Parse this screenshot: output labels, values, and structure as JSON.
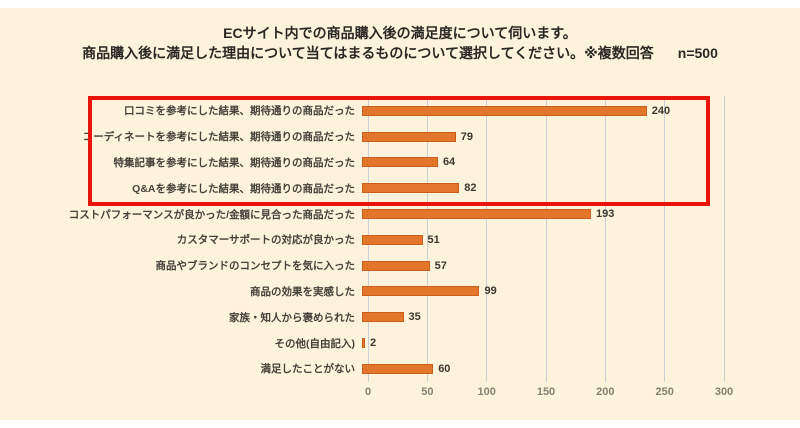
{
  "page": {
    "background_color": "#fdf3dd",
    "top_strip_color": "#ffffff"
  },
  "header": {
    "title_line1": "ECサイト内での商品購入後の満足度について伺います。",
    "title_line2": "商品購入後に満足した理由について当てはまるものについて選択してください。※複数回答",
    "sample_size": "n=500"
  },
  "chart_data": {
    "type": "bar",
    "orientation": "horizontal",
    "title": "商品購入後に満足した理由",
    "categories": [
      "口コミを参考にした結果、期待通りの商品だった",
      "コーディネートを参考にした結果、期待通りの商品だった",
      "特集記事を参考にした結果、期待通りの商品だった",
      "Q&Aを参考にした結果、期待通りの商品だった",
      "コストパフォーマンスが良かった/金額に見合った商品だった",
      "カスタマーサポートの対応が良かった",
      "商品やブランドのコンセプトを気に入った",
      "商品の効果を実感した",
      "家族・知人から褒められた",
      "その他(自由記入)",
      "満足したことがない"
    ],
    "values": [
      240,
      79,
      64,
      82,
      193,
      51,
      57,
      99,
      35,
      2,
      60
    ],
    "x_ticks": [
      0,
      50,
      100,
      150,
      200,
      250,
      300
    ],
    "xlim": [
      0,
      300
    ],
    "grid": true,
    "legend": false,
    "bar_color": "#e4762c",
    "bar_border_color": "#c95f1d",
    "grid_color": "#c9d1d6",
    "highlight_box": {
      "rows_highlighted": 4,
      "first_row": 1,
      "last_row": 4,
      "color": "#e9150d"
    }
  }
}
